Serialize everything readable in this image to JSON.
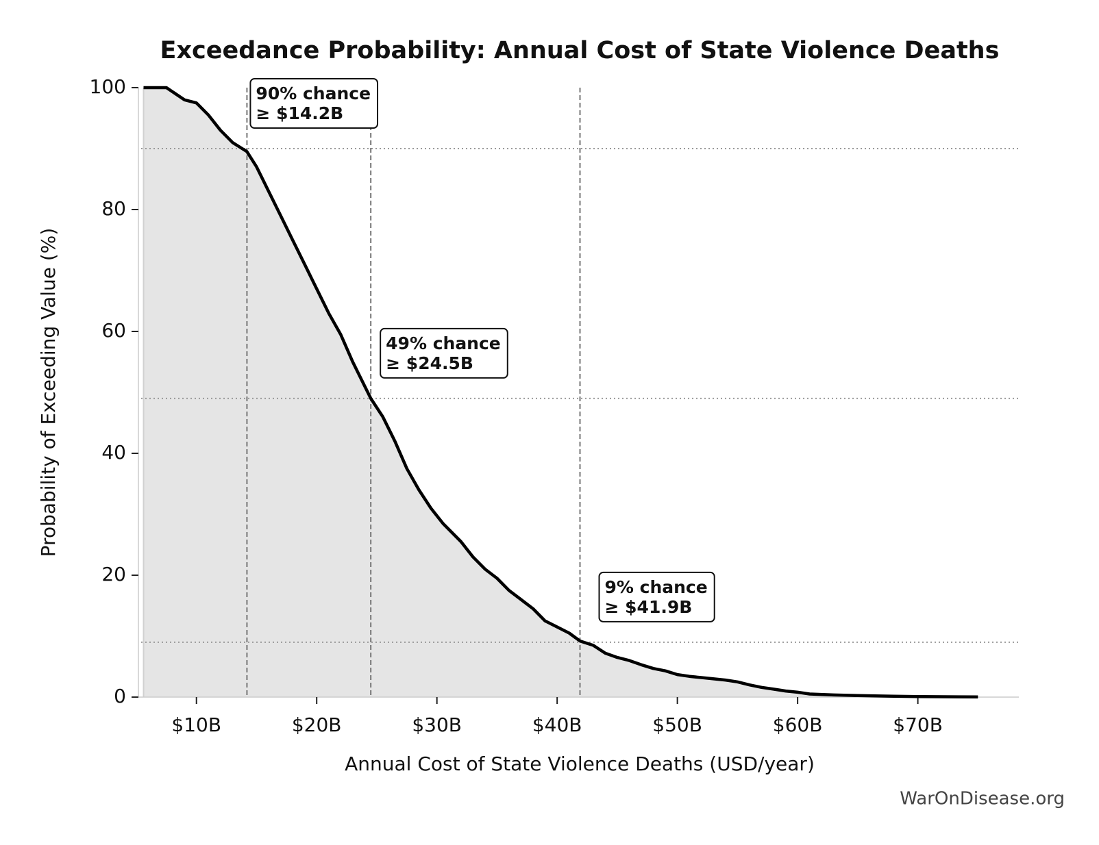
{
  "chart_data": {
    "type": "line",
    "title": "Exceedance Probability: Annual Cost of State Violence Deaths",
    "x_label": "Annual Cost of State Violence Deaths (USD/year)",
    "y_label": "Probability of Exceeding Value (%)",
    "credit": "WarOnDisease.org",
    "fill_color": "#e5e5e5",
    "series": [
      {
        "color": "#000000",
        "x": [
          5600000000,
          7500000000,
          9000000000,
          10000000000,
          11000000000,
          12000000000,
          13000000000,
          14200000000,
          15000000000,
          16000000000,
          17000000000,
          18000000000,
          19000000000,
          20000000000,
          21000000000,
          22000000000,
          23000000000,
          24000000000,
          24500000000,
          25500000000,
          26500000000,
          27500000000,
          28500000000,
          29500000000,
          30500000000,
          32000000000,
          33000000000,
          34000000000,
          35000000000,
          36000000000,
          37000000000,
          38000000000,
          39000000000,
          40000000000,
          41000000000,
          41900000000,
          43000000000,
          44000000000,
          45000000000,
          46000000000,
          47000000000,
          48000000000,
          49000000000,
          50000000000,
          51000000000,
          52000000000,
          54000000000,
          55000000000,
          56000000000,
          57000000000,
          58000000000,
          59000000000,
          60000000000,
          61000000000,
          63000000000,
          65000000000,
          68000000000,
          70000000000,
          75000000000
        ],
        "values": [
          100,
          100,
          98,
          97.5,
          95.5,
          93,
          91,
          89.5,
          87,
          83,
          79,
          75,
          71,
          67,
          63,
          59.5,
          55,
          51,
          49,
          46,
          42,
          37.5,
          34,
          31,
          28.5,
          25.5,
          23,
          21,
          19.5,
          17.5,
          16,
          14.5,
          12.5,
          11.5,
          10.5,
          9.2,
          8.5,
          7.2,
          6.5,
          6,
          5.3,
          4.7,
          4.3,
          3.7,
          3.4,
          3.2,
          2.8,
          2.5,
          2,
          1.6,
          1.3,
          1,
          0.8,
          0.5,
          0.35,
          0.25,
          0.15,
          0.08,
          0.02
        ]
      }
    ],
    "markers": [
      {
        "x": 14200000000,
        "y": 90,
        "lines": [
          "90% chance",
          "≥ $14.2B"
        ]
      },
      {
        "x": 24500000000,
        "y": 49,
        "lines": [
          "49% chance",
          "≥ $24.5B"
        ]
      },
      {
        "x": 41900000000,
        "y": 9,
        "lines": [
          "9% chance",
          "≥ $41.9B"
        ]
      }
    ],
    "xlim": [
      5400000000,
      78400000000
    ],
    "ylim": [
      0,
      100
    ],
    "xticks": [
      {
        "value": 10000000000,
        "label": "$10B"
      },
      {
        "value": 20000000000,
        "label": "$20B"
      },
      {
        "value": 30000000000,
        "label": "$30B"
      },
      {
        "value": 40000000000,
        "label": "$40B"
      },
      {
        "value": 50000000000,
        "label": "$50B"
      },
      {
        "value": 60000000000,
        "label": "$60B"
      },
      {
        "value": 70000000000,
        "label": "$70B"
      }
    ],
    "yticks": [
      0,
      20,
      40,
      60,
      80,
      100
    ]
  }
}
